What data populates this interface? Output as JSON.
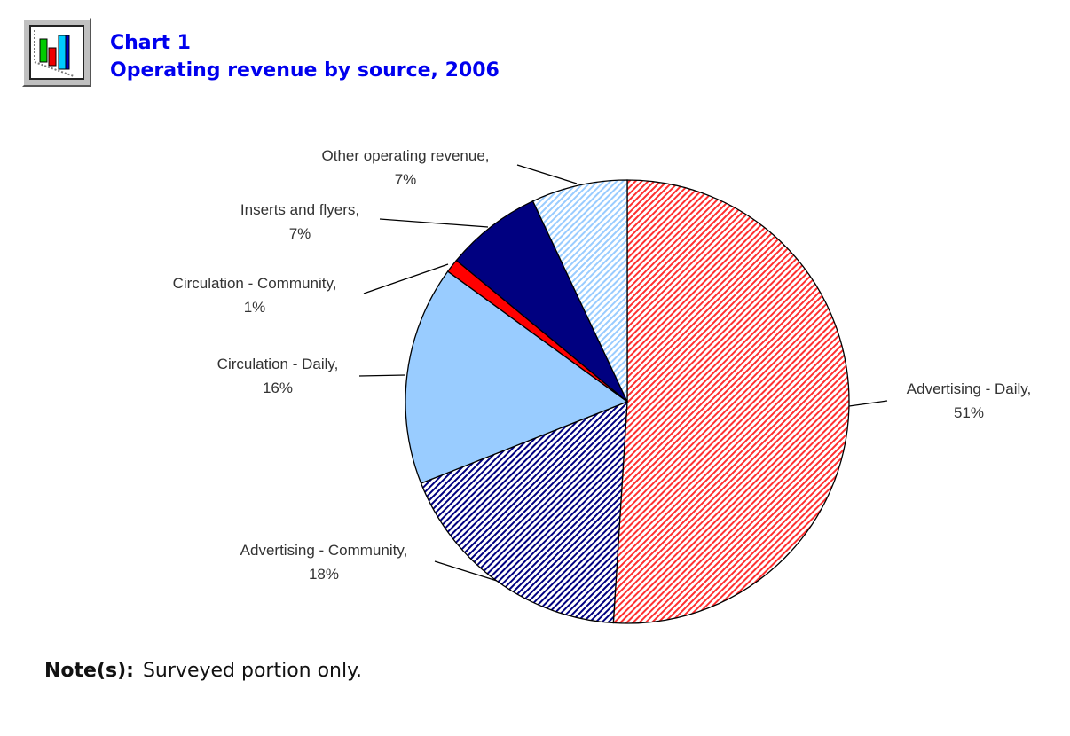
{
  "header": {
    "chart_number": "Chart 1",
    "title": "Operating revenue by source, 2006",
    "icon": "bar-chart-icon"
  },
  "chart_data": {
    "type": "pie",
    "title": "Operating revenue by source, 2006",
    "start_angle_deg": 0,
    "direction": "clockwise",
    "slices": [
      {
        "label": "Advertising - Daily,",
        "value": 51,
        "pct": "51%",
        "color": "#ff0000",
        "fill": "hatch"
      },
      {
        "label": "Advertising - Community,",
        "value": 18,
        "pct": "18%",
        "color": "#000080",
        "fill": "hatch"
      },
      {
        "label": "Circulation - Daily,",
        "value": 16,
        "pct": "16%",
        "color": "#99ccff",
        "fill": "solid"
      },
      {
        "label": "Circulation - Community,",
        "value": 1,
        "pct": "1%",
        "color": "#ff0000",
        "fill": "solid"
      },
      {
        "label": "Inserts and flyers,",
        "value": 7,
        "pct": "7%",
        "color": "#000080",
        "fill": "solid"
      },
      {
        "label": "Other operating revenue,",
        "value": 7,
        "pct": "7%",
        "color": "#99ccff",
        "fill": "hatch"
      }
    ]
  },
  "note": {
    "label": "Note(s):",
    "text": "Surveyed portion only."
  }
}
